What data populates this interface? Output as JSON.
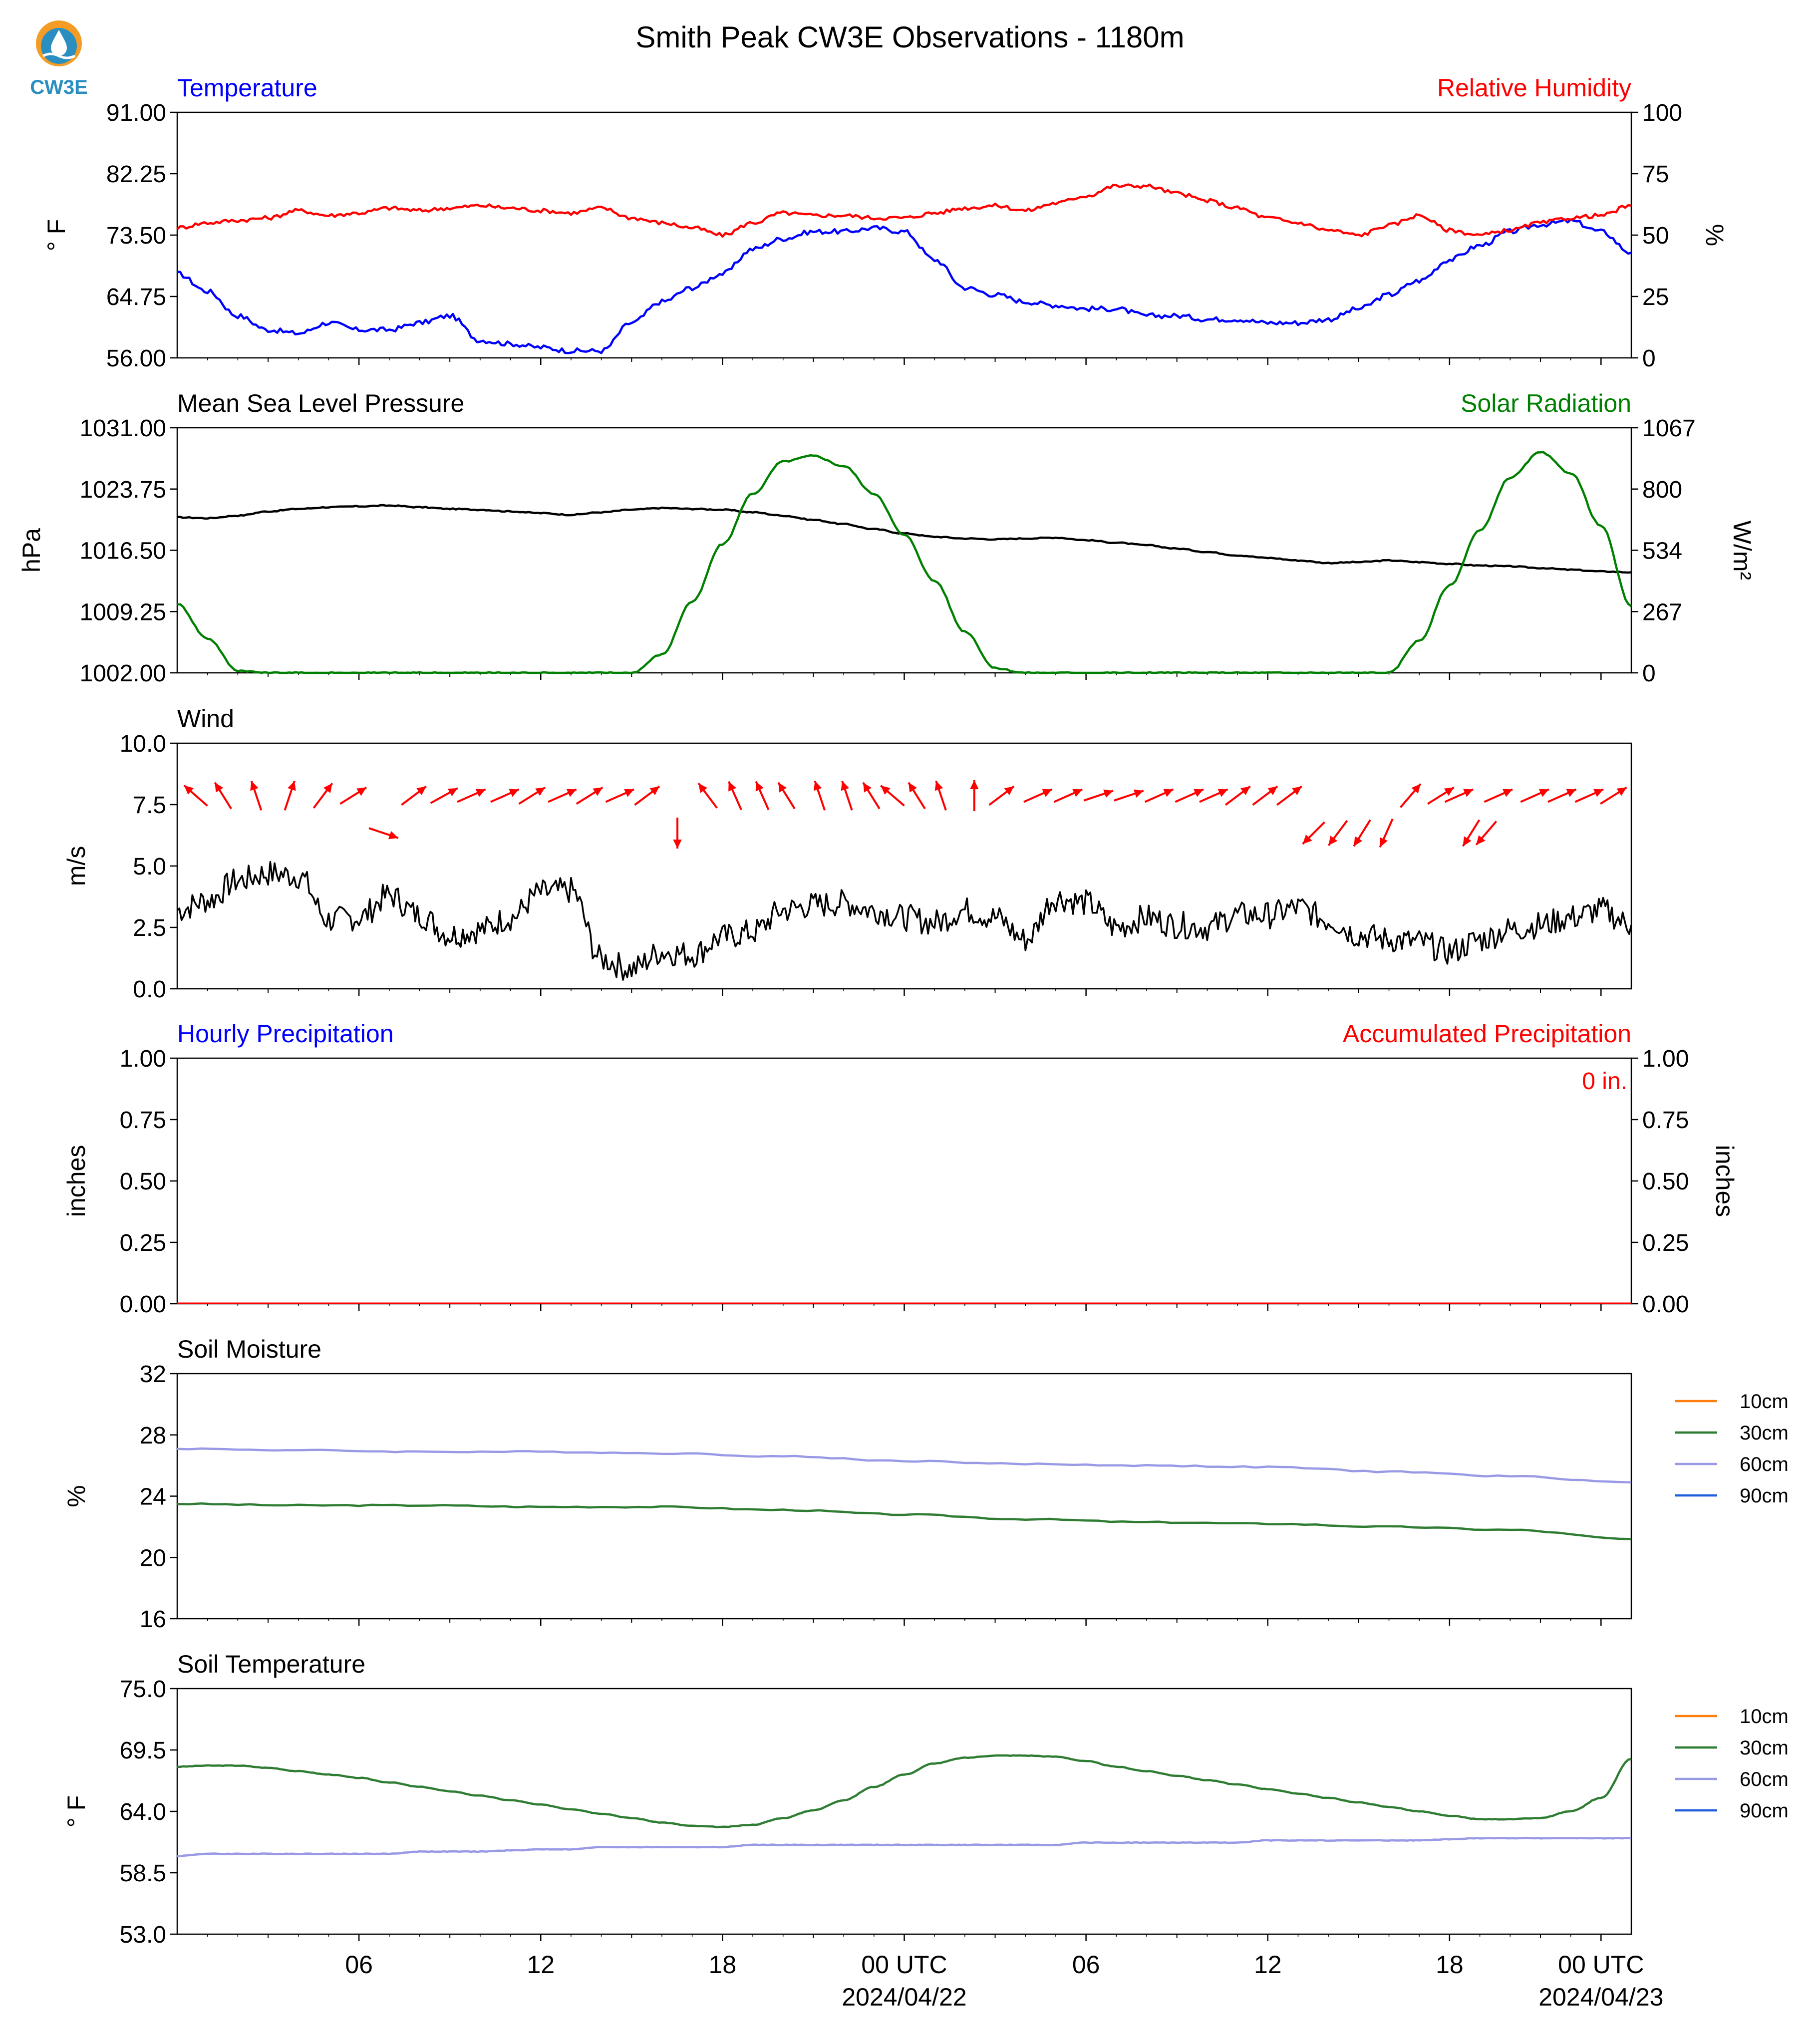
{
  "title": "Smith Peak CW3E Observations - 1180m",
  "logo": {
    "text": "CW3E",
    "icon": "cw3e-logo-icon"
  },
  "x_axis": {
    "ticks": [
      "06",
      "12",
      "18",
      "00 UTC",
      "06",
      "12",
      "18",
      "00 UTC"
    ],
    "dates": [
      "2024/04/22",
      "2024/04/23"
    ]
  },
  "chart_data": [
    {
      "type": "line",
      "panel": "temperature_humidity",
      "left_title": "Temperature",
      "right_title": "Relative Humidity",
      "ylabel_left": "° F",
      "ylabel_right": "%",
      "ylim_left": [
        56,
        91
      ],
      "ylim_right": [
        0,
        100
      ],
      "yticks_left": [
        "56.00",
        "64.75",
        "73.50",
        "82.25",
        "91.00"
      ],
      "yticks_right": [
        "0",
        "25",
        "50",
        "75",
        "100"
      ],
      "colors": {
        "left": "#0000ff",
        "right": "#ff0000"
      },
      "x_hours": [
        0,
        1,
        2,
        3,
        4,
        5,
        6,
        7,
        8,
        9,
        10,
        11,
        12,
        13,
        14,
        15,
        16,
        17,
        18,
        19,
        20,
        21,
        22,
        23,
        24,
        25,
        26,
        27,
        28,
        29,
        30,
        31,
        32,
        33,
        34,
        35,
        36,
        37,
        38,
        39,
        40,
        41,
        42,
        43,
        44,
        45,
        46,
        47,
        48
      ],
      "series": [
        {
          "name": "Temperature",
          "axis": "left",
          "values": [
            68,
            65.5,
            62,
            60,
            59.5,
            61,
            60,
            60,
            61,
            62,
            58.5,
            58,
            57.5,
            57,
            57,
            61,
            64,
            66,
            68,
            71.5,
            73,
            74,
            74,
            74.5,
            74,
            70,
            66,
            65,
            64,
            63.5,
            63,
            63,
            62,
            62,
            61.5,
            61.5,
            61,
            61,
            61.5,
            63,
            65,
            67,
            70,
            72,
            74,
            75,
            75.5,
            74,
            71
          ]
        },
        {
          "name": "Relative Humidity",
          "axis": "right",
          "values": [
            53,
            55,
            56,
            57,
            60,
            58,
            59,
            61,
            60,
            61,
            62,
            61,
            60,
            59,
            61,
            57,
            55,
            53,
            50,
            55,
            59,
            58,
            58,
            57,
            57,
            59,
            61,
            62,
            60,
            63,
            66,
            70,
            70,
            67,
            64,
            61,
            57,
            55,
            52,
            50,
            54,
            58,
            52,
            50,
            52,
            55,
            57,
            58,
            62
          ]
        }
      ]
    },
    {
      "type": "line",
      "panel": "pressure_solar",
      "left_title": "Mean Sea Level Pressure",
      "right_title": "Solar Radiation",
      "ylabel_left": "hPa",
      "ylabel_right": "W/m²",
      "ylim_left": [
        1002,
        1031
      ],
      "ylim_right": [
        0,
        1067
      ],
      "yticks_left": [
        "1002.00",
        "1009.25",
        "1016.50",
        "1023.75",
        "1031.00"
      ],
      "yticks_right": [
        "0",
        "267",
        "534",
        "800",
        "1067"
      ],
      "colors": {
        "left": "#000000",
        "right": "#008000"
      },
      "x_hours": [
        0,
        1,
        2,
        3,
        4,
        5,
        6,
        7,
        8,
        9,
        10,
        11,
        12,
        13,
        14,
        15,
        16,
        17,
        18,
        19,
        20,
        21,
        22,
        23,
        24,
        25,
        26,
        27,
        28,
        29,
        30,
        31,
        32,
        33,
        34,
        35,
        36,
        37,
        38,
        39,
        40,
        41,
        42,
        43,
        44,
        45,
        46,
        47,
        48
      ],
      "series": [
        {
          "name": "Mean Sea Level Pressure",
          "axis": "left",
          "values": [
            1020.4,
            1020.3,
            1020.6,
            1021.1,
            1021.4,
            1021.6,
            1021.7,
            1021.8,
            1021.6,
            1021.4,
            1021.3,
            1021.1,
            1020.9,
            1020.7,
            1021.0,
            1021.3,
            1021.5,
            1021.4,
            1021.3,
            1021.0,
            1020.6,
            1020.1,
            1019.6,
            1019.0,
            1018.5,
            1018.1,
            1017.9,
            1017.8,
            1017.9,
            1018.0,
            1017.7,
            1017.4,
            1017.1,
            1016.7,
            1016.3,
            1015.9,
            1015.6,
            1015.3,
            1015.0,
            1015.1,
            1015.3,
            1015.1,
            1014.9,
            1014.7,
            1014.6,
            1014.4,
            1014.2,
            1014.0,
            1013.9
          ]
        },
        {
          "name": "Solar Radiation",
          "axis": "right",
          "values": [
            300,
            150,
            10,
            0,
            0,
            0,
            0,
            0,
            0,
            0,
            0,
            0,
            0,
            0,
            0,
            0,
            80,
            310,
            560,
            780,
            920,
            945,
            900,
            780,
            600,
            400,
            180,
            20,
            0,
            0,
            0,
            0,
            0,
            0,
            0,
            0,
            0,
            0,
            0,
            0,
            0,
            140,
            380,
            620,
            850,
            960,
            870,
            640,
            290
          ]
        }
      ]
    },
    {
      "type": "line",
      "panel": "wind",
      "left_title": "Wind",
      "ylabel_left": "m/s",
      "ylim_left": [
        0,
        10
      ],
      "yticks_left": [
        "0.0",
        "2.5",
        "5.0",
        "7.5",
        "10.0"
      ],
      "colors": {
        "line": "#000000",
        "barb": "#ff0000"
      },
      "x_hours": [
        0,
        1,
        2,
        3,
        4,
        5,
        6,
        7,
        8,
        9,
        10,
        11,
        12,
        13,
        14,
        15,
        16,
        17,
        18,
        19,
        20,
        21,
        22,
        23,
        24,
        25,
        26,
        27,
        28,
        29,
        30,
        31,
        32,
        33,
        34,
        35,
        36,
        37,
        38,
        39,
        40,
        41,
        42,
        43,
        44,
        45,
        46,
        47,
        48
      ],
      "series": [
        {
          "name": "Wind Speed",
          "values": [
            3.2,
            3.6,
            4.4,
            4.7,
            4.6,
            2.8,
            2.9,
            3.8,
            3.0,
            2.2,
            2.4,
            2.9,
            3.9,
            4.0,
            1.2,
            0.8,
            1.5,
            1.4,
            2.1,
            2.3,
            3.2,
            3.4,
            3.5,
            3.2,
            2.9,
            2.7,
            3.2,
            2.9,
            2.0,
            3.7,
            3.5,
            2.5,
            2.9,
            2.6,
            2.5,
            3.0,
            3.0,
            3.3,
            2.8,
            2.2,
            2.0,
            1.9,
            1.5,
            2.0,
            2.4,
            2.6,
            2.9,
            3.2,
            2.6
          ]
        }
      ],
      "arrows": {
        "hours": [
          0.2,
          1.1,
          2.2,
          3.3,
          4.4,
          5.4,
          6.4,
          7.4,
          8.4,
          9.3,
          10.4,
          11.3,
          12.3,
          13.2,
          14.2,
          15.1,
          16.1,
          17.1,
          18.0,
          18.9,
          19.7,
          20.8,
          21.7,
          22.5,
          23.2,
          24.0,
          24.8,
          25.9,
          26.8,
          28.0,
          29.0,
          30.0,
          31.0,
          32.0,
          33.0,
          33.8,
          34.6,
          35.5,
          36.3,
          37.1,
          37.9,
          38.7,
          39.5,
          40.3,
          41.3,
          41.9,
          42.3,
          42.8,
          43.2,
          44.4,
          45.3,
          46.2,
          47.0
        ],
        "u": [
          -0.8,
          -0.5,
          -0.3,
          0.3,
          0.6,
          0.8,
          0.9,
          0.8,
          0.9,
          0.9,
          0.9,
          0.8,
          0.9,
          0.8,
          0.9,
          0.8,
          0.0,
          -0.6,
          -0.4,
          -0.4,
          -0.5,
          -0.3,
          -0.3,
          -0.5,
          -0.7,
          -0.5,
          -0.3,
          0.0,
          0.8,
          0.9,
          0.9,
          0.9,
          0.9,
          0.9,
          0.9,
          0.9,
          0.8,
          0.8,
          0.8,
          -0.7,
          -0.6,
          -0.5,
          -0.4,
          0.6,
          0.8,
          0.9,
          -0.5,
          -0.6,
          0.9,
          0.9,
          0.9,
          0.9,
          0.8
        ],
        "v": [
          0.7,
          0.8,
          0.9,
          0.9,
          0.8,
          0.5,
          -0.3,
          0.6,
          0.5,
          0.4,
          0.4,
          0.5,
          0.4,
          0.5,
          0.4,
          0.6,
          -1.0,
          0.8,
          0.9,
          0.9,
          0.8,
          0.9,
          0.9,
          0.8,
          0.6,
          0.8,
          0.9,
          1.0,
          0.6,
          0.4,
          0.4,
          0.3,
          0.3,
          0.4,
          0.4,
          0.4,
          0.6,
          0.6,
          0.6,
          -0.7,
          -0.8,
          -0.8,
          -0.9,
          0.7,
          0.5,
          0.4,
          -0.8,
          -0.7,
          0.4,
          0.4,
          0.4,
          0.4,
          0.5
        ]
      }
    },
    {
      "type": "line",
      "panel": "precipitation",
      "left_title": "Hourly Precipitation",
      "right_title": "Accumulated Precipitation",
      "annotation": "0 in.",
      "ylabel_left": "inches",
      "ylabel_right": "inches",
      "ylim_left": [
        0,
        1
      ],
      "ylim_right": [
        0,
        1
      ],
      "yticks_left": [
        "0.00",
        "0.25",
        "0.50",
        "0.75",
        "1.00"
      ],
      "yticks_right": [
        "0.00",
        "0.25",
        "0.50",
        "0.75",
        "1.00"
      ],
      "colors": {
        "left": "#0000ff",
        "right": "#ff0000"
      },
      "series": [
        {
          "name": "Accumulated Precipitation",
          "x_hours": [
            0,
            48
          ],
          "values": [
            0,
            0
          ]
        }
      ]
    },
    {
      "type": "line",
      "panel": "soil_moisture",
      "left_title": "Soil Moisture",
      "ylabel_left": "%",
      "ylim_left": [
        16,
        32
      ],
      "yticks_left": [
        "16",
        "20",
        "24",
        "28",
        "32"
      ],
      "legend": [
        {
          "name": "10cm",
          "color": "#ff7f0e"
        },
        {
          "name": "30cm",
          "color": "#2e7d32"
        },
        {
          "name": "60cm",
          "color": "#9999e6"
        },
        {
          "name": "90cm",
          "color": "#1f5fdc"
        }
      ],
      "x_hours": [
        0,
        4,
        8,
        12,
        16,
        20,
        24,
        28,
        32,
        36,
        40,
        44,
        48
      ],
      "series": [
        {
          "name": "30cm",
          "values": [
            23.5,
            23.4,
            23.4,
            23.3,
            23.3,
            23.1,
            22.8,
            22.5,
            22.3,
            22.2,
            22.0,
            21.8,
            21.2
          ]
        },
        {
          "name": "60cm",
          "values": [
            27.1,
            27.0,
            26.9,
            26.9,
            26.8,
            26.6,
            26.3,
            26.1,
            26.0,
            25.9,
            25.6,
            25.3,
            24.9
          ]
        }
      ]
    },
    {
      "type": "line",
      "panel": "soil_temperature",
      "left_title": "Soil Temperature",
      "ylabel_left": "° F",
      "ylim_left": [
        53,
        75
      ],
      "yticks_left": [
        "53.0",
        "58.5",
        "64.0",
        "69.5",
        "75.0"
      ],
      "legend": [
        {
          "name": "10cm",
          "color": "#ff7f0e"
        },
        {
          "name": "30cm",
          "color": "#2e7d32"
        },
        {
          "name": "60cm",
          "color": "#9999e6"
        },
        {
          "name": "90cm",
          "color": "#1f5fdc"
        }
      ],
      "x_hours": [
        0,
        1,
        2,
        3,
        4,
        5,
        6,
        7,
        8,
        9,
        10,
        11,
        12,
        13,
        14,
        15,
        16,
        17,
        18,
        19,
        20,
        21,
        22,
        23,
        24,
        25,
        26,
        27,
        28,
        29,
        30,
        31,
        32,
        33,
        34,
        35,
        36,
        37,
        38,
        39,
        40,
        41,
        42,
        43,
        44,
        45,
        46,
        47,
        48
      ],
      "series": [
        {
          "name": "30cm",
          "values": [
            68.0,
            68.1,
            68.1,
            67.9,
            67.6,
            67.3,
            67.0,
            66.6,
            66.2,
            65.8,
            65.4,
            65.0,
            64.6,
            64.2,
            63.8,
            63.4,
            63.0,
            62.7,
            62.6,
            62.8,
            63.4,
            64.1,
            65.0,
            66.2,
            67.3,
            68.3,
            68.8,
            69.0,
            69.0,
            68.9,
            68.5,
            68.0,
            67.6,
            67.2,
            66.8,
            66.4,
            66.0,
            65.6,
            65.2,
            64.8,
            64.4,
            64.0,
            63.6,
            63.3,
            63.3,
            63.4,
            64.0,
            65.2,
            68.7
          ]
        },
        {
          "name": "60cm",
          "values": [
            60.0,
            60.2,
            60.2,
            60.2,
            60.2,
            60.2,
            60.2,
            60.2,
            60.4,
            60.4,
            60.4,
            60.5,
            60.6,
            60.6,
            60.8,
            60.8,
            60.8,
            60.8,
            60.8,
            61.0,
            61.0,
            61.0,
            61.0,
            61.0,
            61.0,
            61.0,
            61.0,
            61.0,
            61.0,
            61.0,
            61.2,
            61.2,
            61.2,
            61.2,
            61.2,
            61.2,
            61.4,
            61.4,
            61.4,
            61.4,
            61.4,
            61.4,
            61.5,
            61.6,
            61.6,
            61.6,
            61.6,
            61.6,
            61.6
          ]
        }
      ]
    }
  ]
}
